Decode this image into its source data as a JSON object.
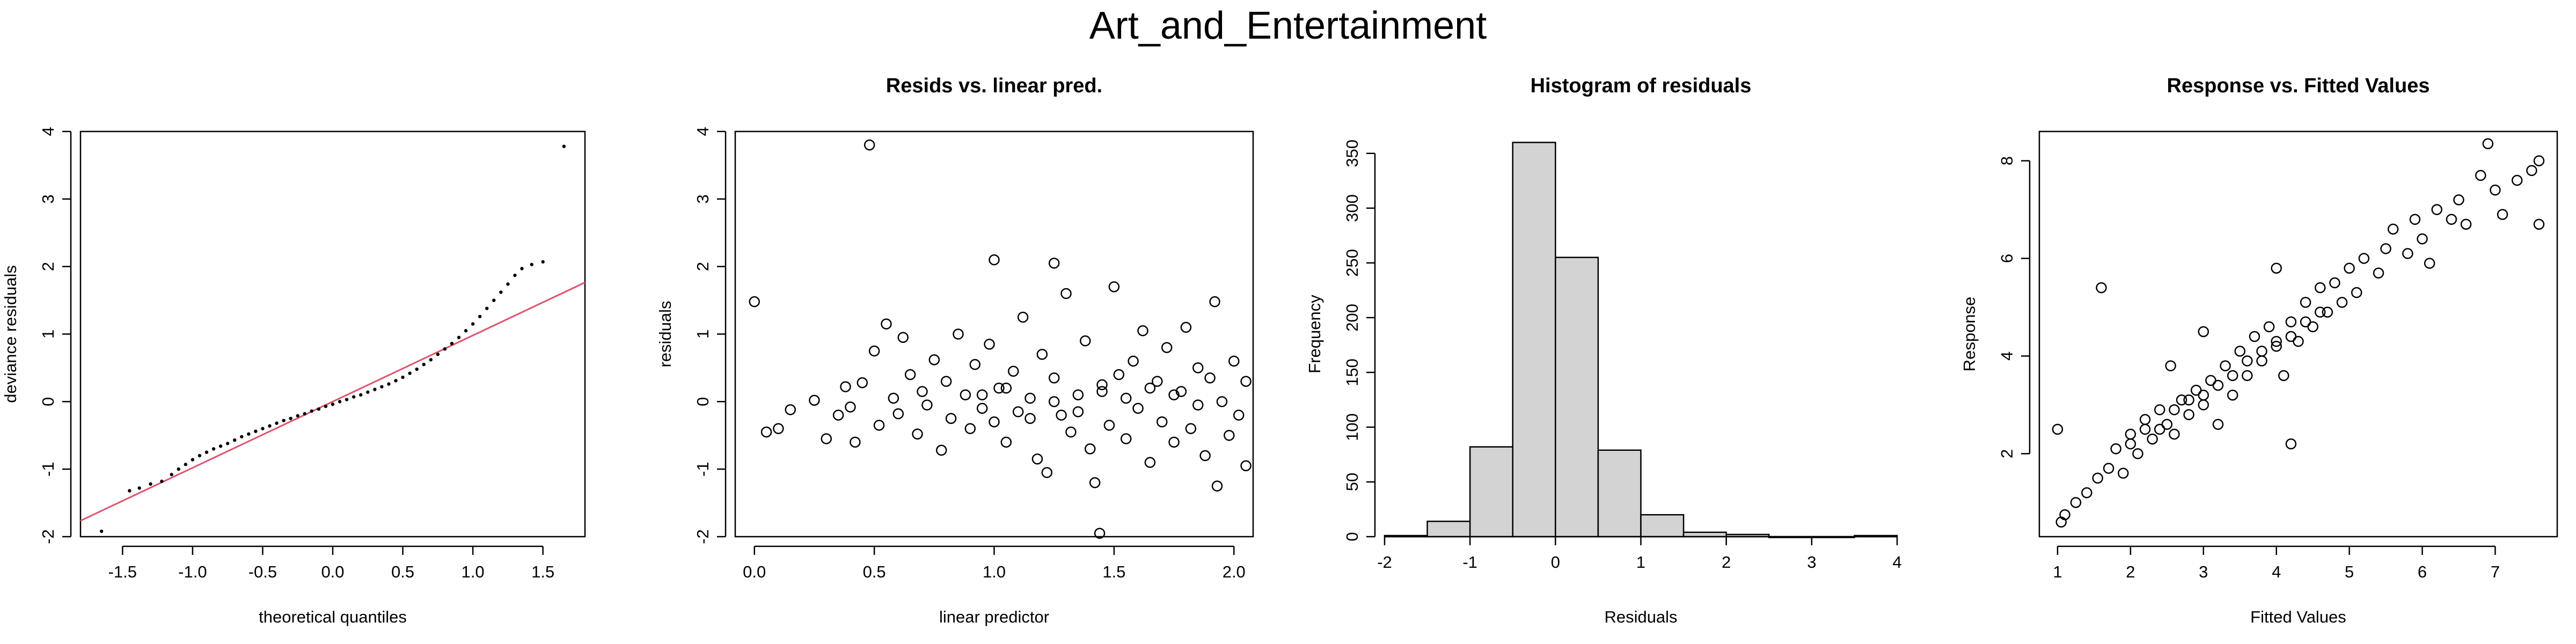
{
  "main_title": "Art_and_Entertainment",
  "colors": {
    "qq_line": "#DF536B",
    "hist_fill": "#D3D3D3",
    "stroke": "#000000"
  },
  "chart_data": [
    {
      "type": "scatter",
      "title": "",
      "xlabel": "theoretical quantiles",
      "ylabel": "deviance residuals",
      "xlim": [
        -1.8,
        1.8
      ],
      "ylim": [
        -2.0,
        4.0
      ],
      "xticks": [
        -1.5,
        -1.0,
        -0.5,
        0.0,
        0.5,
        1.0,
        1.5
      ],
      "xtick_labels": [
        "-1.5",
        "-1.0",
        "-0.5",
        "0.0",
        "0.5",
        "1.0",
        "1.5"
      ],
      "yticks": [
        -2,
        -1,
        0,
        1,
        2,
        3,
        4
      ],
      "ytick_labels": [
        "-2",
        "-1",
        "0",
        "1",
        "2",
        "3",
        "4"
      ],
      "marker": "dot",
      "reference_line": {
        "slope": 0.98,
        "intercept": 0.0,
        "color": "#DF536B"
      },
      "points": [
        [
          -1.65,
          -1.92
        ],
        [
          -1.45,
          -1.32
        ],
        [
          -1.38,
          -1.28
        ],
        [
          -1.3,
          -1.22
        ],
        [
          -1.22,
          -1.18
        ],
        [
          -1.15,
          -1.08
        ],
        [
          -1.1,
          -1.0
        ],
        [
          -1.05,
          -0.93
        ],
        [
          -1.0,
          -0.86
        ],
        [
          -0.95,
          -0.8
        ],
        [
          -0.9,
          -0.75
        ],
        [
          -0.85,
          -0.7
        ],
        [
          -0.8,
          -0.66
        ],
        [
          -0.75,
          -0.62
        ],
        [
          -0.7,
          -0.57
        ],
        [
          -0.65,
          -0.52
        ],
        [
          -0.6,
          -0.48
        ],
        [
          -0.55,
          -0.44
        ],
        [
          -0.5,
          -0.4
        ],
        [
          -0.45,
          -0.36
        ],
        [
          -0.4,
          -0.32
        ],
        [
          -0.35,
          -0.28
        ],
        [
          -0.3,
          -0.25
        ],
        [
          -0.25,
          -0.21
        ],
        [
          -0.2,
          -0.18
        ],
        [
          -0.15,
          -0.14
        ],
        [
          -0.1,
          -0.11
        ],
        [
          -0.05,
          -0.07
        ],
        [
          0.0,
          -0.04
        ],
        [
          0.05,
          0.0
        ],
        [
          0.1,
          0.03
        ],
        [
          0.15,
          0.07
        ],
        [
          0.2,
          0.1
        ],
        [
          0.25,
          0.14
        ],
        [
          0.3,
          0.18
        ],
        [
          0.35,
          0.22
        ],
        [
          0.4,
          0.26
        ],
        [
          0.45,
          0.31
        ],
        [
          0.5,
          0.36
        ],
        [
          0.55,
          0.42
        ],
        [
          0.6,
          0.48
        ],
        [
          0.65,
          0.55
        ],
        [
          0.7,
          0.62
        ],
        [
          0.75,
          0.7
        ],
        [
          0.8,
          0.78
        ],
        [
          0.85,
          0.86
        ],
        [
          0.9,
          0.95
        ],
        [
          0.95,
          1.05
        ],
        [
          1.0,
          1.15
        ],
        [
          1.05,
          1.26
        ],
        [
          1.1,
          1.38
        ],
        [
          1.15,
          1.5
        ],
        [
          1.2,
          1.62
        ],
        [
          1.25,
          1.74
        ],
        [
          1.3,
          1.87
        ],
        [
          1.35,
          1.97
        ],
        [
          1.42,
          2.03
        ],
        [
          1.5,
          2.07
        ],
        [
          1.65,
          3.78
        ]
      ]
    },
    {
      "type": "scatter",
      "title": "Resids vs. linear pred.",
      "xlabel": "linear predictor",
      "ylabel": "residuals",
      "xlim": [
        -0.08,
        2.08
      ],
      "ylim": [
        -2.0,
        4.0
      ],
      "xticks": [
        0.0,
        0.5,
        1.0,
        1.5,
        2.0
      ],
      "xtick_labels": [
        "0.0",
        "0.5",
        "1.0",
        "1.5",
        "2.0"
      ],
      "yticks": [
        -2,
        -1,
        0,
        1,
        2,
        3,
        4
      ],
      "ytick_labels": [
        "-2",
        "-1",
        "0",
        "1",
        "2",
        "3",
        "4"
      ],
      "marker": "circle",
      "points": [
        [
          0.0,
          1.48
        ],
        [
          0.48,
          3.8
        ],
        [
          0.05,
          -0.45
        ],
        [
          0.1,
          -0.4
        ],
        [
          0.15,
          -0.12
        ],
        [
          0.25,
          0.02
        ],
        [
          0.3,
          -0.55
        ],
        [
          0.35,
          -0.2
        ],
        [
          0.38,
          0.22
        ],
        [
          0.4,
          -0.08
        ],
        [
          0.42,
          -0.6
        ],
        [
          0.45,
          0.28
        ],
        [
          0.5,
          0.75
        ],
        [
          0.52,
          -0.35
        ],
        [
          0.55,
          1.15
        ],
        [
          0.58,
          0.05
        ],
        [
          0.6,
          -0.18
        ],
        [
          0.62,
          0.95
        ],
        [
          0.65,
          0.4
        ],
        [
          0.68,
          -0.48
        ],
        [
          0.7,
          0.15
        ],
        [
          0.72,
          -0.05
        ],
        [
          0.75,
          0.62
        ],
        [
          0.78,
          -0.72
        ],
        [
          0.8,
          0.3
        ],
        [
          0.82,
          -0.25
        ],
        [
          0.85,
          1.0
        ],
        [
          0.88,
          0.1
        ],
        [
          0.9,
          -0.4
        ],
        [
          0.92,
          0.55
        ],
        [
          0.95,
          -0.1
        ],
        [
          0.98,
          0.85
        ],
        [
          1.0,
          -0.3
        ],
        [
          1.0,
          2.1
        ],
        [
          1.02,
          0.2
        ],
        [
          1.05,
          -0.6
        ],
        [
          1.08,
          0.45
        ],
        [
          1.1,
          -0.15
        ],
        [
          1.12,
          1.25
        ],
        [
          1.15,
          0.05
        ],
        [
          1.18,
          -0.85
        ],
        [
          1.2,
          0.7
        ],
        [
          1.22,
          -1.05
        ],
        [
          1.25,
          2.05
        ],
        [
          1.25,
          0.35
        ],
        [
          1.28,
          -0.2
        ],
        [
          1.3,
          1.6
        ],
        [
          1.32,
          -0.45
        ],
        [
          1.35,
          0.1
        ],
        [
          1.38,
          0.9
        ],
        [
          1.4,
          -0.7
        ],
        [
          1.42,
          -1.2
        ],
        [
          1.44,
          -1.95
        ],
        [
          1.45,
          0.25
        ],
        [
          1.48,
          -0.35
        ],
        [
          1.5,
          1.7
        ],
        [
          1.52,
          0.4
        ],
        [
          1.55,
          -0.55
        ],
        [
          1.58,
          0.6
        ],
        [
          1.6,
          -0.1
        ],
        [
          1.62,
          1.05
        ],
        [
          1.65,
          -0.9
        ],
        [
          1.68,
          0.3
        ],
        [
          1.7,
          -0.3
        ],
        [
          1.72,
          0.8
        ],
        [
          1.75,
          -0.6
        ],
        [
          1.78,
          0.15
        ],
        [
          1.8,
          1.1
        ],
        [
          1.82,
          -0.4
        ],
        [
          1.85,
          0.5
        ],
        [
          1.88,
          -0.8
        ],
        [
          1.9,
          0.35
        ],
        [
          1.92,
          1.48
        ],
        [
          1.93,
          -1.25
        ],
        [
          1.95,
          0.0
        ],
        [
          1.98,
          -0.5
        ],
        [
          2.0,
          0.6
        ],
        [
          2.02,
          -0.2
        ],
        [
          2.05,
          0.3
        ],
        [
          2.05,
          -0.95
        ],
        [
          0.95,
          0.1
        ],
        [
          1.05,
          0.2
        ],
        [
          1.15,
          -0.25
        ],
        [
          1.25,
          0.0
        ],
        [
          1.35,
          -0.15
        ],
        [
          1.45,
          0.15
        ],
        [
          1.55,
          0.05
        ],
        [
          1.65,
          0.2
        ],
        [
          1.75,
          0.1
        ],
        [
          1.85,
          -0.05
        ]
      ]
    },
    {
      "type": "bar",
      "title": "Histogram of residuals",
      "xlabel": "Residuals",
      "ylabel": "Frequency",
      "xlim": [
        -2.0,
        4.0
      ],
      "ylim": [
        0,
        370
      ],
      "xticks": [
        -2,
        -1,
        0,
        1,
        2,
        3,
        4
      ],
      "xtick_labels": [
        "-2",
        "-1",
        "0",
        "1",
        "2",
        "3",
        "4"
      ],
      "yticks": [
        0,
        50,
        100,
        150,
        200,
        250,
        300,
        350
      ],
      "ytick_labels": [
        "0",
        "50",
        "100",
        "150",
        "200",
        "250",
        "300",
        "350"
      ],
      "bin_edges": [
        -2.0,
        -1.5,
        -1.0,
        -0.5,
        0.0,
        0.5,
        1.0,
        1.5,
        2.0,
        2.5,
        3.0,
        3.5,
        4.0
      ],
      "values": [
        1,
        14,
        82,
        360,
        255,
        79,
        20,
        4,
        2,
        0,
        0,
        1
      ]
    },
    {
      "type": "scatter",
      "title": "Response vs. Fitted Values",
      "xlabel": "Fitted Values",
      "ylabel": "Response",
      "xlim": [
        0.75,
        7.85
      ],
      "ylim": [
        0.3,
        8.6
      ],
      "xticks": [
        1,
        2,
        3,
        4,
        5,
        6,
        7
      ],
      "xtick_labels": [
        "1",
        "2",
        "3",
        "4",
        "5",
        "6",
        "7"
      ],
      "yticks": [
        2,
        4,
        6,
        8
      ],
      "ytick_labels": [
        "2",
        "4",
        "6",
        "8"
      ],
      "marker": "circle",
      "points": [
        [
          1.0,
          2.5
        ],
        [
          1.05,
          0.6
        ],
        [
          1.1,
          0.75
        ],
        [
          1.25,
          1.0
        ],
        [
          1.4,
          1.2
        ],
        [
          1.55,
          1.5
        ],
        [
          1.6,
          5.4
        ],
        [
          1.7,
          1.7
        ],
        [
          1.8,
          2.1
        ],
        [
          1.9,
          1.6
        ],
        [
          2.0,
          2.4
        ],
        [
          2.1,
          2.0
        ],
        [
          2.2,
          2.7
        ],
        [
          2.3,
          2.3
        ],
        [
          2.4,
          2.9
        ],
        [
          2.5,
          2.6
        ],
        [
          2.55,
          3.8
        ],
        [
          2.6,
          2.4
        ],
        [
          2.7,
          3.1
        ],
        [
          2.8,
          2.8
        ],
        [
          2.9,
          3.3
        ],
        [
          3.0,
          3.0
        ],
        [
          3.0,
          4.5
        ],
        [
          3.1,
          3.5
        ],
        [
          3.2,
          2.6
        ],
        [
          3.3,
          3.8
        ],
        [
          3.4,
          3.2
        ],
        [
          3.5,
          4.1
        ],
        [
          3.6,
          3.6
        ],
        [
          3.7,
          4.4
        ],
        [
          3.8,
          3.9
        ],
        [
          3.9,
          4.6
        ],
        [
          4.0,
          4.2
        ],
        [
          4.0,
          5.8
        ],
        [
          4.1,
          3.6
        ],
        [
          4.2,
          4.7
        ],
        [
          4.3,
          4.3
        ],
        [
          4.4,
          5.1
        ],
        [
          4.5,
          4.6
        ],
        [
          4.6,
          5.4
        ],
        [
          4.7,
          4.9
        ],
        [
          4.8,
          5.5
        ],
        [
          4.9,
          5.1
        ],
        [
          5.0,
          5.8
        ],
        [
          5.1,
          5.3
        ],
        [
          5.2,
          6.0
        ],
        [
          5.4,
          5.7
        ],
        [
          5.5,
          6.2
        ],
        [
          5.6,
          6.6
        ],
        [
          5.8,
          6.1
        ],
        [
          5.9,
          6.8
        ],
        [
          6.0,
          6.4
        ],
        [
          6.1,
          5.9
        ],
        [
          6.2,
          7.0
        ],
        [
          6.4,
          6.8
        ],
        [
          6.5,
          7.2
        ],
        [
          6.6,
          6.7
        ],
        [
          6.8,
          7.7
        ],
        [
          6.9,
          8.35
        ],
        [
          7.0,
          7.4
        ],
        [
          7.1,
          6.9
        ],
        [
          7.3,
          7.6
        ],
        [
          7.5,
          7.8
        ],
        [
          7.6,
          8.0
        ],
        [
          7.6,
          6.7
        ],
        [
          2.0,
          2.2
        ],
        [
          2.2,
          2.5
        ],
        [
          2.4,
          2.5
        ],
        [
          2.6,
          2.9
        ],
        [
          2.8,
          3.1
        ],
        [
          3.0,
          3.2
        ],
        [
          3.2,
          3.4
        ],
        [
          3.4,
          3.6
        ],
        [
          3.6,
          3.9
        ],
        [
          3.8,
          4.1
        ],
        [
          4.0,
          4.3
        ],
        [
          4.2,
          4.4
        ],
        [
          4.4,
          4.7
        ],
        [
          4.6,
          4.9
        ],
        [
          4.2,
          2.2
        ]
      ]
    }
  ]
}
